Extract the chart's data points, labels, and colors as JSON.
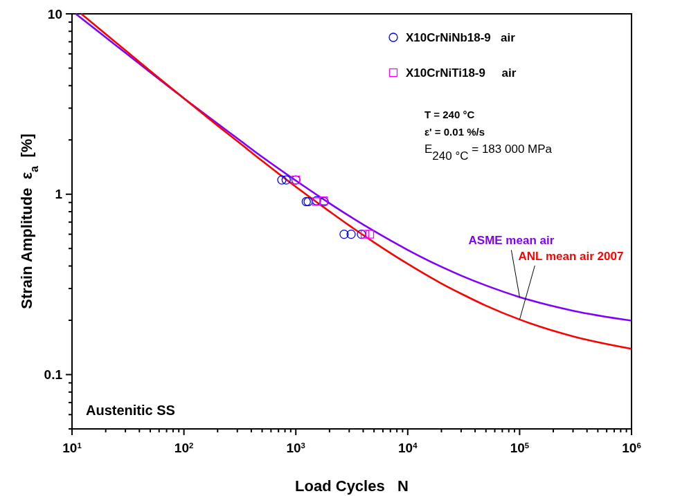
{
  "chart_data": {
    "type": "scatter",
    "xlabel": "Load Cycles   N",
    "ylabel": "Strain Amplitude  ε$_{a}$  [%]",
    "log": "xy",
    "grid": false,
    "legend": "top right",
    "xlim": [
      10,
      1000000
    ],
    "ylim": [
      0.05,
      10
    ],
    "xticks": [
      {
        "value": 10,
        "label": "10$^{1}$"
      },
      {
        "value": 20,
        "label": null
      },
      {
        "value": 30,
        "label": null
      },
      {
        "value": 40,
        "label": null
      },
      {
        "value": 50,
        "label": null
      },
      {
        "value": 60,
        "label": null
      },
      {
        "value": 70,
        "label": null
      },
      {
        "value": 80,
        "label": null
      },
      {
        "value": 90,
        "label": null
      },
      {
        "value": 100,
        "label": "10$^{2}$"
      },
      {
        "value": 200,
        "label": null
      },
      {
        "value": 300,
        "label": null
      },
      {
        "value": 400,
        "label": null
      },
      {
        "value": 500,
        "label": null
      },
      {
        "value": 600,
        "label": null
      },
      {
        "value": 700,
        "label": null
      },
      {
        "value": 800,
        "label": null
      },
      {
        "value": 900,
        "label": null
      },
      {
        "value": 1000,
        "label": "10$^{3}$"
      },
      {
        "value": 2000,
        "label": null
      },
      {
        "value": 3000,
        "label": null
      },
      {
        "value": 4000,
        "label": null
      },
      {
        "value": 5000,
        "label": null
      },
      {
        "value": 6000,
        "label": null
      },
      {
        "value": 7000,
        "label": null
      },
      {
        "value": 8000,
        "label": null
      },
      {
        "value": 9000,
        "label": null
      },
      {
        "value": 10000,
        "label": "10$^{4}$"
      },
      {
        "value": 20000,
        "label": null
      },
      {
        "value": 30000,
        "label": null
      },
      {
        "value": 40000,
        "label": null
      },
      {
        "value": 50000,
        "label": null
      },
      {
        "value": 60000,
        "label": null
      },
      {
        "value": 70000,
        "label": null
      },
      {
        "value": 80000,
        "label": null
      },
      {
        "value": 90000,
        "label": null
      },
      {
        "value": 100000,
        "label": "10$^{5}$"
      },
      {
        "value": 200000,
        "label": null
      },
      {
        "value": 300000,
        "label": null
      },
      {
        "value": 400000,
        "label": null
      },
      {
        "value": 500000,
        "label": null
      },
      {
        "value": 600000,
        "label": null
      },
      {
        "value": 700000,
        "label": null
      },
      {
        "value": 800000,
        "label": null
      },
      {
        "value": 900000,
        "label": null
      },
      {
        "value": 1000000,
        "label": "10$^{6}$"
      }
    ],
    "yticks": [
      {
        "value": 0.05,
        "label": null
      },
      {
        "value": 0.06,
        "label": null
      },
      {
        "value": 0.07,
        "label": null
      },
      {
        "value": 0.08,
        "label": null
      },
      {
        "value": 0.09,
        "label": null
      },
      0.1,
      {
        "value": 0.2,
        "label": null
      },
      {
        "value": 0.3,
        "label": null
      },
      {
        "value": 0.4,
        "label": null
      },
      {
        "value": 0.5,
        "label": null
      },
      {
        "value": 0.6,
        "label": null
      },
      {
        "value": 0.7,
        "label": null
      },
      {
        "value": 0.8,
        "label": null
      },
      {
        "value": 0.9,
        "label": null
      },
      1,
      {
        "value": 2,
        "label": null
      },
      {
        "value": 3,
        "label": null
      },
      {
        "value": 4,
        "label": null
      },
      {
        "value": 5,
        "label": null
      },
      {
        "value": 6,
        "label": null
      },
      {
        "value": 7,
        "label": null
      },
      {
        "value": 8,
        "label": null
      },
      {
        "value": 9,
        "label": null
      },
      10
    ],
    "annotations": [
      "T = 240 °C",
      "ε' = 0.01 %/s",
      "E$_{240 °C}$ = 183 000 MPa",
      "Austenitic SS"
    ],
    "series": [
      {
        "name": "X10CrNiNb18-9   air",
        "marker": "circle",
        "color": "#0000ff",
        "x": [
          750,
          820,
          1000,
          1240,
          1290,
          1530,
          1790,
          2700,
          3120,
          3860
        ],
        "values": [
          1.2,
          1.2,
          1.2,
          0.91,
          0.91,
          0.92,
          0.91,
          0.6,
          0.6,
          0.6
        ]
      },
      {
        "name": "X10CrNiTi18-9     air",
        "marker": "square",
        "color": "#ff00ff",
        "x": [
          1000,
          1530,
          1770,
          4150,
          4580
        ],
        "values": [
          1.2,
          0.91,
          0.92,
          0.6,
          0.6
        ]
      },
      {
        "name": "ASME mean air",
        "type": "line",
        "line_style": "solid",
        "color": "#8000ff",
        "x": [
          10.8,
          20,
          30,
          50,
          100,
          200,
          300,
          500,
          1000,
          2000,
          3000,
          5000,
          10000,
          20000,
          30000,
          50000,
          100000,
          300000,
          1000000
        ],
        "values": [
          10,
          7.4,
          6.08,
          4.74,
          3.4,
          2.46,
          2.04,
          1.61,
          1.19,
          0.891,
          0.758,
          0.625,
          0.491,
          0.396,
          0.354,
          0.312,
          0.269,
          0.226,
          0.199
        ]
      },
      {
        "name": "ANL mean air 2007",
        "type": "line",
        "line_style": "solid",
        "color": "#ff0000",
        "x": [
          12.1,
          20,
          30,
          50,
          100,
          200,
          300,
          500,
          1000,
          2000,
          3000,
          5000,
          10000,
          20000,
          30000,
          50000,
          100000,
          300000,
          1000000
        ],
        "values": [
          10,
          7.72,
          6.27,
          4.83,
          3.4,
          2.4,
          1.97,
          1.53,
          1.1,
          0.803,
          0.671,
          0.541,
          0.411,
          0.32,
          0.281,
          0.241,
          0.202,
          0.163,
          0.139
        ]
      }
    ]
  }
}
